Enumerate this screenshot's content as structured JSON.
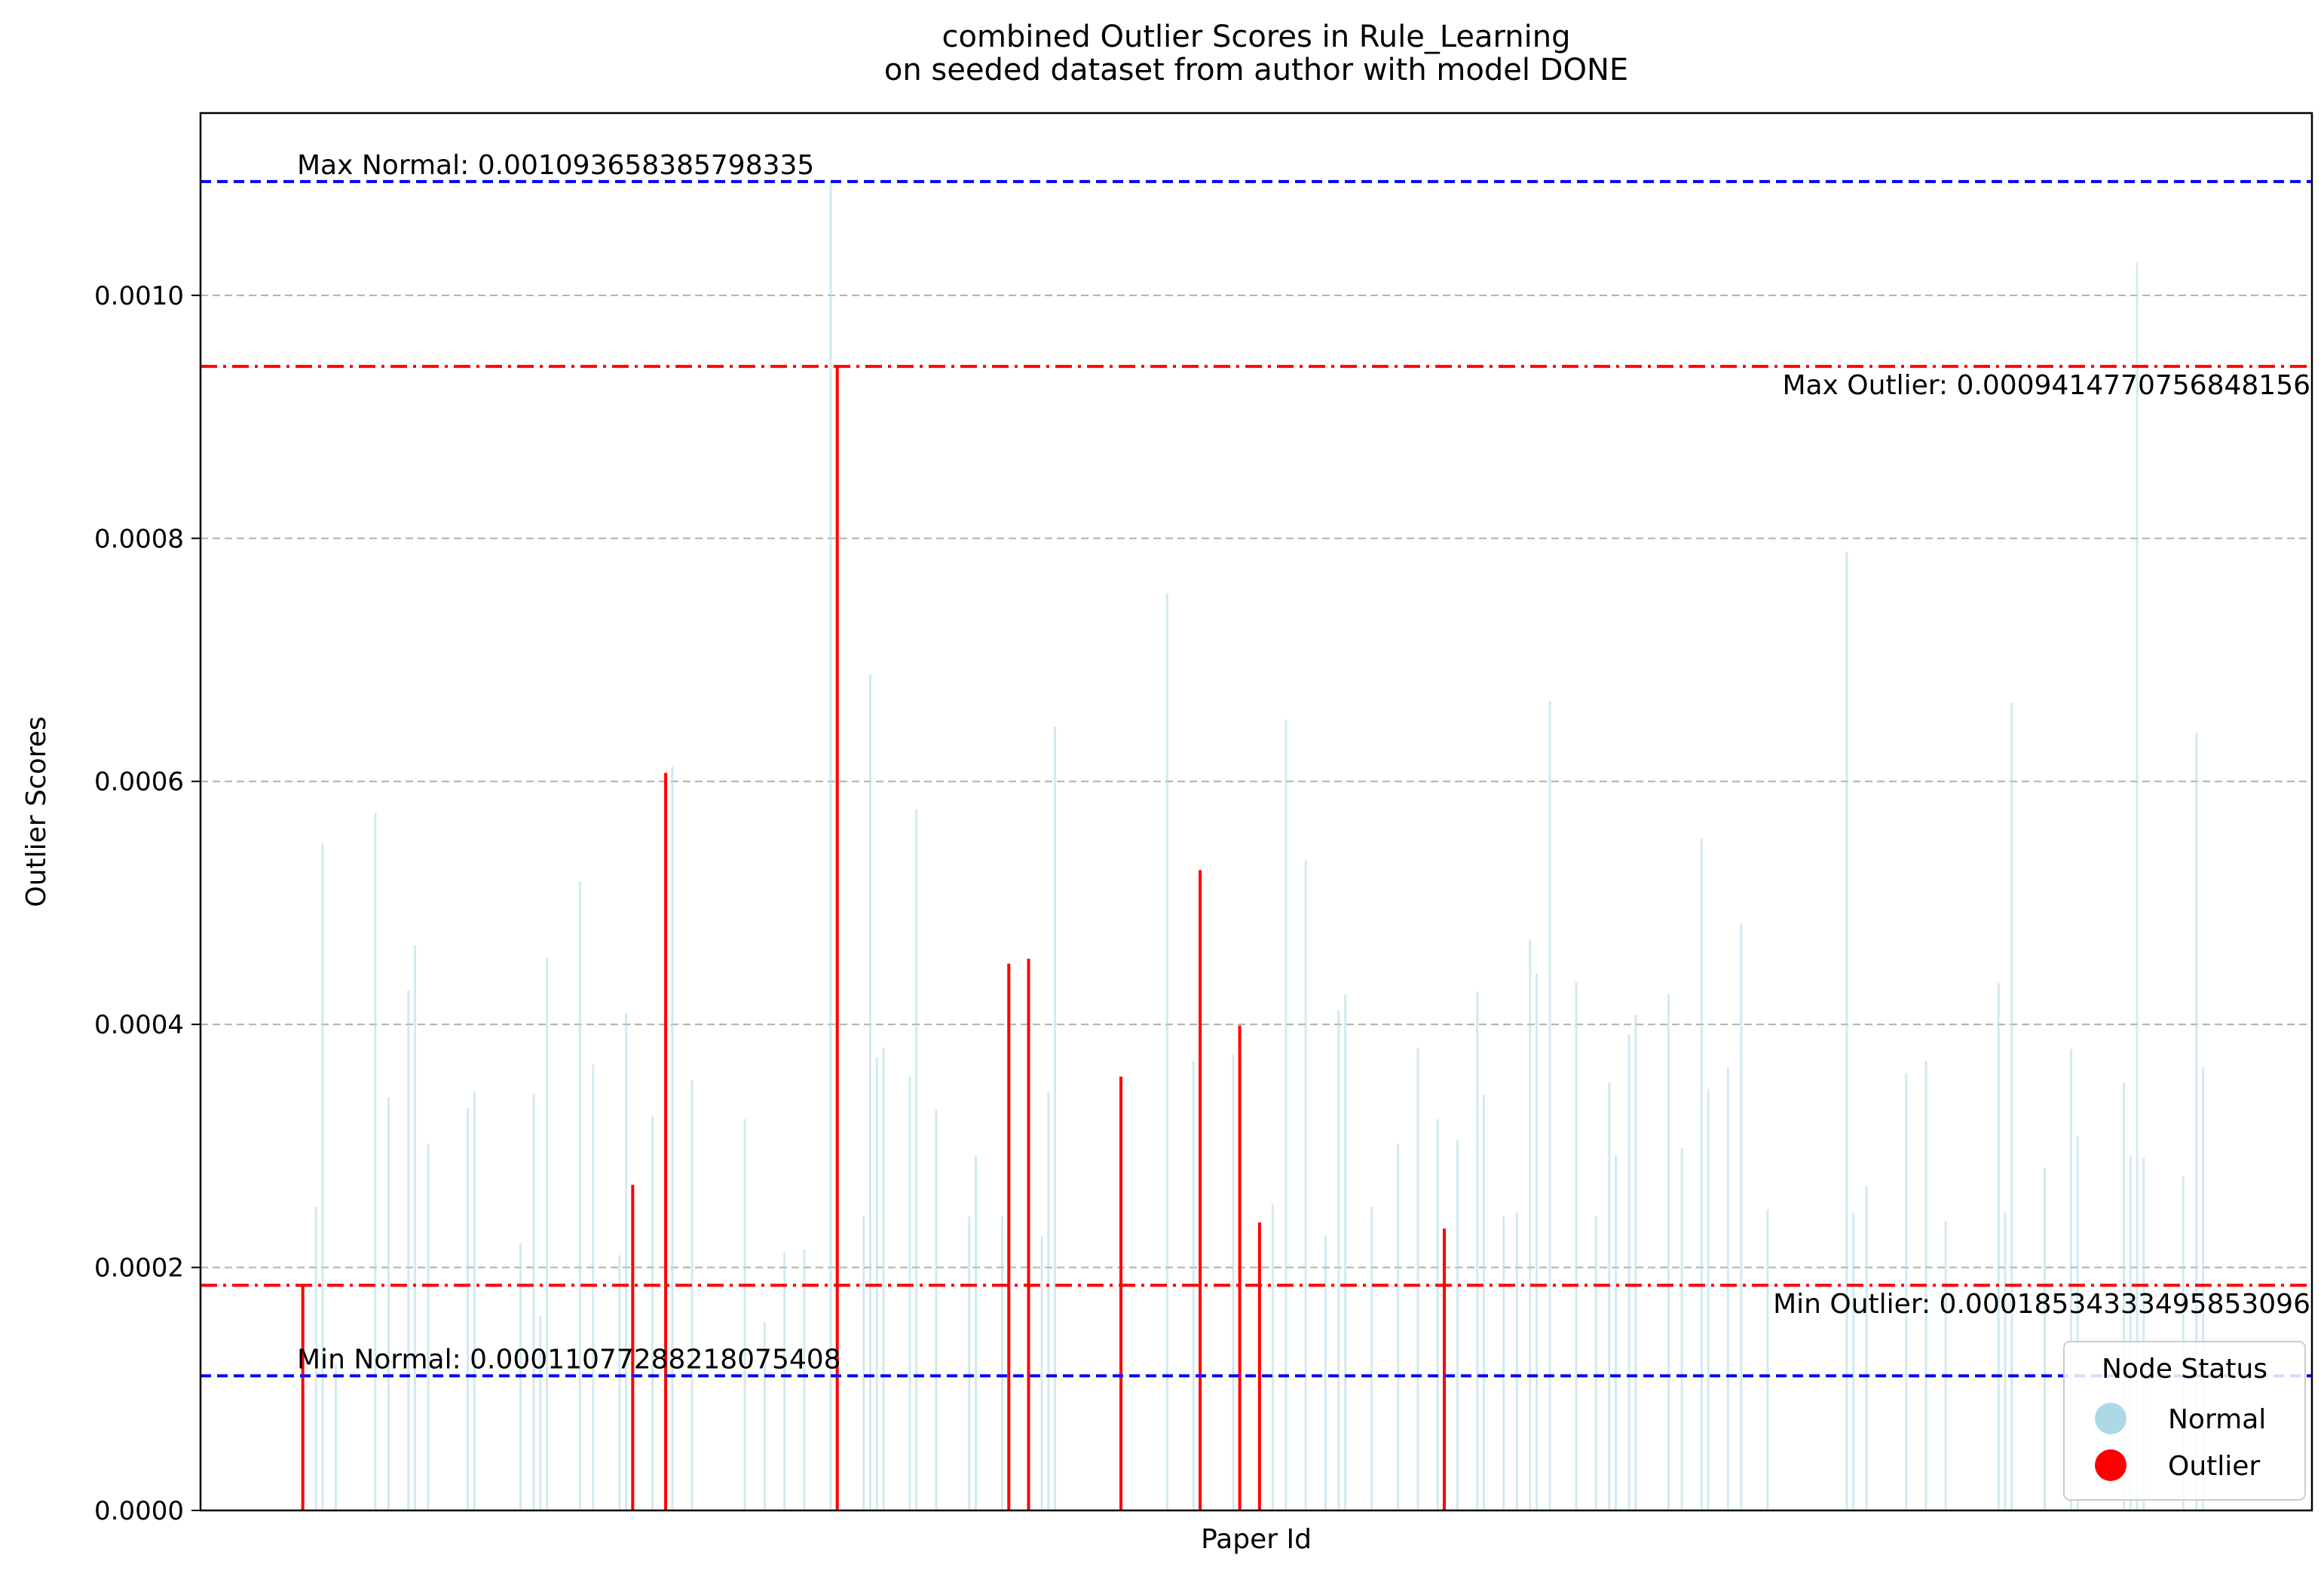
{
  "chart_data": {
    "type": "bar",
    "title": "combined Outlier Scores in Rule_Learning\non seeded dataset from author with model DONE",
    "xlabel": "Paper Id",
    "ylabel": "Outlier Scores",
    "ylim": [
      0,
      0.00115
    ],
    "yticks": [
      "0.0000",
      "0.0002",
      "0.0004",
      "0.0006",
      "0.0008",
      "0.0010"
    ],
    "grid": "horizontal dashed",
    "colors": {
      "normal": "#add8e6",
      "outlier": "#ff0000",
      "normal_lines": "#0000ff",
      "outlier_lines": "#ff0000"
    },
    "reference_lines": [
      {
        "label": "Max Normal: 0.001093658385798335",
        "value": 0.001093658385798335,
        "style": "dashed",
        "color": "#0000ff",
        "label_position": "left"
      },
      {
        "label": "Max Outlier: 0.0009414770756848156",
        "value": 0.0009414770756848156,
        "style": "dashdot",
        "color": "#ff0000",
        "label_position": "right"
      },
      {
        "label": "Min Outlier: 0.00018534333495853096",
        "value": 0.00018534333495853097,
        "style": "dashdot",
        "color": "#ff0000",
        "label_position": "right"
      },
      {
        "label": "Min Normal: 0.00011077288218075408",
        "value": 0.00011077288218075408,
        "style": "dashed",
        "color": "#0000ff",
        "label_position": "left"
      }
    ],
    "legend": {
      "title": "Node Status",
      "placement": "lower-right",
      "entries": [
        "Normal",
        "Outlier"
      ]
    },
    "x_count": 320,
    "series": [
      {
        "name": "Outlier",
        "points": [
          {
            "x": 15,
            "y": 0.000185
          },
          {
            "x": 65,
            "y": 0.000268
          },
          {
            "x": 70,
            "y": 0.000607
          },
          {
            "x": 96,
            "y": 0.000941
          },
          {
            "x": 122,
            "y": 0.00045
          },
          {
            "x": 125,
            "y": 0.000454
          },
          {
            "x": 139,
            "y": 0.000357
          },
          {
            "x": 151,
            "y": 0.000527
          },
          {
            "x": 157,
            "y": 0.000399
          },
          {
            "x": 160,
            "y": 0.000237
          },
          {
            "x": 188,
            "y": 0.000232
          }
        ]
      },
      {
        "name": "Normal",
        "points": [
          {
            "x": 17,
            "y": 0.00025
          },
          {
            "x": 18,
            "y": 0.000549
          },
          {
            "x": 20,
            "y": 0.00012
          },
          {
            "x": 26,
            "y": 0.000574
          },
          {
            "x": 28,
            "y": 0.00034
          },
          {
            "x": 31,
            "y": 0.000428
          },
          {
            "x": 32,
            "y": 0.000465
          },
          {
            "x": 34,
            "y": 0.000302
          },
          {
            "x": 40,
            "y": 0.000331
          },
          {
            "x": 41,
            "y": 0.000345
          },
          {
            "x": 48,
            "y": 0.00022
          },
          {
            "x": 50,
            "y": 0.000343
          },
          {
            "x": 51,
            "y": 0.00016
          },
          {
            "x": 52,
            "y": 0.000455
          },
          {
            "x": 57,
            "y": 0.000518
          },
          {
            "x": 59,
            "y": 0.000367
          },
          {
            "x": 63,
            "y": 0.00021
          },
          {
            "x": 64,
            "y": 0.000409
          },
          {
            "x": 68,
            "y": 0.000325
          },
          {
            "x": 71,
            "y": 0.000612
          },
          {
            "x": 74,
            "y": 0.000354
          },
          {
            "x": 82,
            "y": 0.000322
          },
          {
            "x": 85,
            "y": 0.000155
          },
          {
            "x": 88,
            "y": 0.000212
          },
          {
            "x": 91,
            "y": 0.000215
          },
          {
            "x": 95,
            "y": 0.001094
          },
          {
            "x": 100,
            "y": 0.000242
          },
          {
            "x": 101,
            "y": 0.000688
          },
          {
            "x": 102,
            "y": 0.000373
          },
          {
            "x": 103,
            "y": 0.000381
          },
          {
            "x": 107,
            "y": 0.000357
          },
          {
            "x": 108,
            "y": 0.000577
          },
          {
            "x": 111,
            "y": 0.00033
          },
          {
            "x": 116,
            "y": 0.000242
          },
          {
            "x": 117,
            "y": 0.000292
          },
          {
            "x": 121,
            "y": 0.000242
          },
          {
            "x": 127,
            "y": 0.000226
          },
          {
            "x": 128,
            "y": 0.000344
          },
          {
            "x": 129,
            "y": 0.000645
          },
          {
            "x": 146,
            "y": 0.000755
          },
          {
            "x": 150,
            "y": 0.00037
          },
          {
            "x": 156,
            "y": 0.000375
          },
          {
            "x": 162,
            "y": 0.000252
          },
          {
            "x": 164,
            "y": 0.000651
          },
          {
            "x": 167,
            "y": 0.000535
          },
          {
            "x": 170,
            "y": 0.000226
          },
          {
            "x": 172,
            "y": 0.000412
          },
          {
            "x": 173,
            "y": 0.000425
          },
          {
            "x": 177,
            "y": 0.00025
          },
          {
            "x": 181,
            "y": 0.000302
          },
          {
            "x": 184,
            "y": 0.000381
          },
          {
            "x": 187,
            "y": 0.000322
          },
          {
            "x": 190,
            "y": 0.000305
          },
          {
            "x": 193,
            "y": 0.000427
          },
          {
            "x": 194,
            "y": 0.000342
          },
          {
            "x": 197,
            "y": 0.000242
          },
          {
            "x": 199,
            "y": 0.000245
          },
          {
            "x": 201,
            "y": 0.00047
          },
          {
            "x": 202,
            "y": 0.000442
          },
          {
            "x": 204,
            "y": 0.000666
          },
          {
            "x": 208,
            "y": 0.000435
          },
          {
            "x": 211,
            "y": 0.000242
          },
          {
            "x": 213,
            "y": 0.000352
          },
          {
            "x": 214,
            "y": 0.000292
          },
          {
            "x": 216,
            "y": 0.000392
          },
          {
            "x": 217,
            "y": 0.000408
          },
          {
            "x": 222,
            "y": 0.000425
          },
          {
            "x": 224,
            "y": 0.000298
          },
          {
            "x": 227,
            "y": 0.000553
          },
          {
            "x": 228,
            "y": 0.000347
          },
          {
            "x": 231,
            "y": 0.000365
          },
          {
            "x": 233,
            "y": 0.000483
          },
          {
            "x": 237,
            "y": 0.000248
          },
          {
            "x": 249,
            "y": 0.000789
          },
          {
            "x": 250,
            "y": 0.000245
          },
          {
            "x": 252,
            "y": 0.000267
          },
          {
            "x": 258,
            "y": 0.00036
          },
          {
            "x": 261,
            "y": 0.00037
          },
          {
            "x": 264,
            "y": 0.000238
          },
          {
            "x": 272,
            "y": 0.000434
          },
          {
            "x": 273,
            "y": 0.000245
          },
          {
            "x": 274,
            "y": 0.000665
          },
          {
            "x": 279,
            "y": 0.000282
          },
          {
            "x": 283,
            "y": 0.00038
          },
          {
            "x": 284,
            "y": 0.000308
          },
          {
            "x": 291,
            "y": 0.000352
          },
          {
            "x": 292,
            "y": 0.000292
          },
          {
            "x": 293,
            "y": 0.001027
          },
          {
            "x": 294,
            "y": 0.00029
          },
          {
            "x": 300,
            "y": 0.000275
          },
          {
            "x": 302,
            "y": 0.00064
          },
          {
            "x": 303,
            "y": 0.000365
          }
        ]
      }
    ]
  }
}
